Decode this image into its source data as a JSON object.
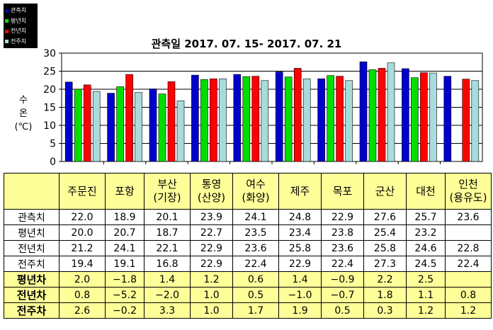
{
  "chart_data": {
    "type": "bar",
    "title": "관측일 2017. 07. 15- 2017. 07. 21",
    "ylabel": [
      "수",
      "온",
      "(℃)"
    ],
    "ylim": [
      0,
      30
    ],
    "yticks": [
      0,
      5,
      10,
      15,
      20,
      25,
      30
    ],
    "categories": [
      {
        "name": "주문진",
        "sub": ""
      },
      {
        "name": "포항",
        "sub": ""
      },
      {
        "name": "부산",
        "sub": "(기장)"
      },
      {
        "name": "통영",
        "sub": "(산양)"
      },
      {
        "name": "여수",
        "sub": "(화양)"
      },
      {
        "name": "제주",
        "sub": ""
      },
      {
        "name": "목포",
        "sub": ""
      },
      {
        "name": "군산",
        "sub": ""
      },
      {
        "name": "대천",
        "sub": ""
      },
      {
        "name": "인천",
        "sub": "(용유도)"
      }
    ],
    "series": [
      {
        "name": "관측치",
        "color": "#0000cc",
        "values": [
          22.0,
          18.9,
          20.1,
          23.9,
          24.1,
          24.8,
          22.9,
          27.6,
          25.7,
          23.6
        ]
      },
      {
        "name": "평년치",
        "color": "#00dd00",
        "values": [
          20.0,
          20.7,
          18.7,
          22.7,
          23.5,
          23.4,
          23.8,
          25.4,
          23.2,
          null
        ]
      },
      {
        "name": "전년치",
        "color": "#ff0000",
        "values": [
          21.2,
          24.1,
          22.1,
          22.9,
          23.6,
          25.8,
          23.6,
          25.8,
          24.6,
          22.8
        ]
      },
      {
        "name": "전주치",
        "color": "#a8dcdc",
        "values": [
          19.4,
          19.1,
          16.8,
          22.9,
          22.4,
          22.9,
          22.4,
          27.3,
          24.5,
          22.4
        ]
      }
    ],
    "grid": true,
    "legend": "top-left",
    "table": {
      "rows": [
        {
          "label": "관측치",
          "values": [
            "22.0",
            "18.9",
            "20.1",
            "23.9",
            "24.1",
            "24.8",
            "22.9",
            "27.6",
            "25.7",
            "23.6"
          ]
        },
        {
          "label": "평년치",
          "values": [
            "20.0",
            "20.7",
            "18.7",
            "22.7",
            "23.5",
            "23.4",
            "23.8",
            "25.4",
            "23.2",
            ""
          ]
        },
        {
          "label": "전년치",
          "values": [
            "21.2",
            "24.1",
            "22.1",
            "22.9",
            "23.6",
            "25.8",
            "23.6",
            "25.8",
            "24.6",
            "22.8"
          ]
        },
        {
          "label": "전주치",
          "values": [
            "19.4",
            "19.1",
            "16.8",
            "22.9",
            "22.4",
            "22.9",
            "22.4",
            "27.3",
            "24.5",
            "22.4"
          ]
        }
      ],
      "diff_rows": [
        {
          "label": "평년차",
          "values": [
            "2.0",
            "−1.8",
            "1.4",
            "1.2",
            "0.6",
            "1.4",
            "−0.9",
            "2.2",
            "2.5",
            ""
          ]
        },
        {
          "label": "전년차",
          "values": [
            "0.8",
            "−5.2",
            "−2.0",
            "1.0",
            "0.5",
            "−1.0",
            "−0.7",
            "1.8",
            "1.1",
            "0.8"
          ]
        },
        {
          "label": "전주차",
          "values": [
            "2.6",
            "−0.2",
            "3.3",
            "1.0",
            "1.7",
            "1.9",
            "0.5",
            "0.3",
            "1.2",
            "1.2"
          ]
        }
      ]
    }
  }
}
